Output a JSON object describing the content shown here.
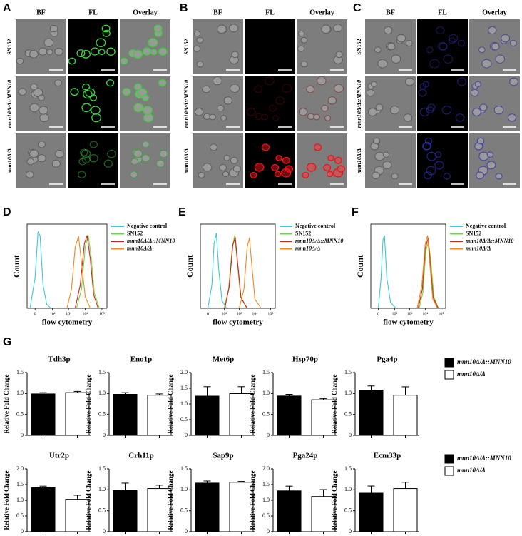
{
  "microscopy": [
    {
      "label": "A",
      "columns": [
        "BF",
        "FL",
        "Overlay"
      ],
      "rows": [
        "SN152",
        "mnn10Δ/Δ::MNN10",
        "mnn10Δ/Δ"
      ],
      "color": "#3fd23f"
    },
    {
      "label": "B",
      "columns": [
        "BF",
        "FL",
        "Overlay"
      ],
      "rows": [
        "SN152",
        "mnn10Δ/Δ::MNN10",
        "mnn10Δ/Δ"
      ],
      "color": "#e8161b"
    },
    {
      "label": "C",
      "columns": [
        "BF",
        "FL",
        "Overlay"
      ],
      "rows": [
        "SN152",
        "mnn10Δ/Δ::MNN10",
        "mnn10Δ/Δ"
      ],
      "color": "#3b3bd6"
    }
  ],
  "section_label": "G",
  "chart_data": [
    {
      "type": "flow",
      "label": "D",
      "xlabel": "flow cytometry",
      "ylabel": "Count",
      "xscale": "symlog",
      "xlim": [
        -20,
        200000
      ],
      "ylim": [
        0,
        110
      ],
      "xticks": [
        0,
        {
          "value": 100,
          "label": "10²"
        },
        {
          "value": 1000,
          "label": "10³"
        },
        {
          "value": 10000,
          "label": "10⁴"
        },
        {
          "value": 100000,
          "label": "10⁵"
        }
      ],
      "series": [
        {
          "name": "Negative control",
          "color": "#3cc8d8",
          "x": [
            -10,
            0,
            5,
            10,
            20,
            40,
            80
          ],
          "values": [
            0,
            40,
            100,
            95,
            30,
            5,
            0
          ]
        },
        {
          "name": "SN152",
          "color": "#66dd44",
          "x": [
            3000,
            6000,
            10000,
            15000,
            22000,
            35000,
            70000
          ],
          "values": [
            0,
            25,
            80,
            96,
            70,
            20,
            0
          ]
        },
        {
          "name": "mnn10Δ/Δ::MNN10",
          "color": "#d62020",
          "x": [
            2500,
            5000,
            9000,
            13000,
            20000,
            32000,
            60000
          ],
          "values": [
            0,
            30,
            85,
            95,
            65,
            18,
            0
          ]
        },
        {
          "name": "mnn10Δ/Δ",
          "color": "#f08a1e",
          "x": [
            800,
            1500,
            2500,
            4000,
            6000,
            10000,
            20000
          ],
          "values": [
            0,
            25,
            80,
            94,
            60,
            15,
            0
          ]
        }
      ]
    },
    {
      "type": "flow",
      "label": "E",
      "xlabel": "flow cytometry",
      "ylabel": "Count",
      "xscale": "symlog",
      "xlim": [
        -20,
        200000
      ],
      "ylim": [
        0,
        110
      ],
      "xticks": [
        0,
        {
          "value": 100,
          "label": "10²"
        },
        {
          "value": 1000,
          "label": "10³"
        },
        {
          "value": 10000,
          "label": "10⁴"
        },
        {
          "value": 100000,
          "label": "10⁵"
        }
      ],
      "series": [
        {
          "name": "Negative control",
          "color": "#3cc8d8",
          "x": [
            0,
            8,
            15,
            25,
            40,
            70,
            150
          ],
          "values": [
            0,
            30,
            85,
            98,
            50,
            10,
            0
          ]
        },
        {
          "name": "SN152",
          "color": "#66dd44",
          "x": [
            100,
            200,
            350,
            500,
            750,
            1200,
            3000
          ],
          "values": [
            0,
            25,
            80,
            95,
            60,
            15,
            0
          ]
        },
        {
          "name": "mnn10Δ/Δ::MNN10",
          "color": "#d62020",
          "x": [
            110,
            220,
            380,
            550,
            800,
            1300,
            3200
          ],
          "values": [
            0,
            28,
            82,
            93,
            58,
            14,
            0
          ]
        },
        {
          "name": "mnn10Δ/Δ",
          "color": "#f08a1e",
          "x": [
            1000,
            2000,
            3200,
            4500,
            6500,
            10000,
            25000
          ],
          "values": [
            0,
            25,
            80,
            92,
            55,
            12,
            0
          ]
        }
      ]
    },
    {
      "type": "flow",
      "label": "F",
      "xlabel": "flow cytometry",
      "ylabel": "Count",
      "xscale": "symlog",
      "xlim": [
        -20,
        200000
      ],
      "ylim": [
        0,
        110
      ],
      "xticks": [
        0,
        {
          "value": 100,
          "label": "10²"
        },
        {
          "value": 1000,
          "label": "10³"
        },
        {
          "value": 10000,
          "label": "10⁴"
        },
        {
          "value": 100000,
          "label": "10⁵"
        }
      ],
      "series": [
        {
          "name": "Negative control",
          "color": "#3cc8d8",
          "x": [
            0,
            5,
            10,
            15,
            25,
            50,
            120
          ],
          "values": [
            0,
            40,
            90,
            95,
            40,
            8,
            0
          ]
        },
        {
          "name": "SN152",
          "color": "#66dd44",
          "x": [
            4000,
            7000,
            11000,
            16000,
            23000,
            35000,
            70000
          ],
          "values": [
            0,
            20,
            75,
            88,
            60,
            15,
            0
          ]
        },
        {
          "name": "mnn10Δ/Δ::MNN10",
          "color": "#d62020",
          "x": [
            3500,
            6500,
            10000,
            15000,
            21000,
            32000,
            65000
          ],
          "values": [
            0,
            25,
            78,
            92,
            58,
            14,
            0
          ]
        },
        {
          "name": "mnn10Δ/Δ",
          "color": "#f08a1e",
          "x": [
            3000,
            6000,
            10000,
            14000,
            20000,
            30000,
            60000
          ],
          "values": [
            0,
            30,
            85,
            95,
            55,
            12,
            0
          ]
        }
      ]
    },
    {
      "type": "bar",
      "title": "Tdh3p",
      "ylabel": "Relative Fold Change",
      "ylim": [
        0,
        1.5
      ],
      "yticks": [
        0,
        0.5,
        {
          "value": 1,
          "label": "1.0"
        },
        1.5
      ],
      "series": [
        {
          "name": "mnn10Δ/Δ::MNN10",
          "color": "#000000",
          "values": [
            0.99
          ],
          "errors": [
            0.03
          ]
        },
        {
          "name": "mnn10Δ/Δ",
          "color": "#ffffff",
          "values": [
            1.02
          ],
          "errors": [
            0.03
          ]
        }
      ]
    },
    {
      "type": "bar",
      "title": "Eno1p",
      "ylabel": "Relative Fold Change",
      "ylim": [
        0,
        1.5
      ],
      "yticks": [
        0,
        0.5,
        {
          "value": 1,
          "label": "1.0"
        },
        1.5
      ],
      "series": [
        {
          "name": "mnn10Δ/Δ::MNN10",
          "color": "#000000",
          "values": [
            0.98
          ],
          "errors": [
            0.04
          ]
        },
        {
          "name": "mnn10Δ/Δ",
          "color": "#ffffff",
          "values": [
            0.96
          ],
          "errors": [
            0.03
          ]
        }
      ]
    },
    {
      "type": "bar",
      "title": "Met6p",
      "ylabel": "Relative Fold Change",
      "ylim": [
        0,
        2
      ],
      "yticks": [
        0,
        0.5,
        {
          "value": 1,
          "label": "1.0"
        },
        1.5,
        {
          "value": 2,
          "label": "2.0"
        }
      ],
      "series": [
        {
          "name": "mnn10Δ/Δ::MNN10",
          "color": "#000000",
          "values": [
            1.25
          ],
          "errors": [
            0.3
          ]
        },
        {
          "name": "mnn10Δ/Δ",
          "color": "#ffffff",
          "values": [
            1.33
          ],
          "errors": [
            0.22
          ]
        }
      ]
    },
    {
      "type": "bar",
      "title": "Hsp70p",
      "ylabel": "Relative Fold Change",
      "ylim": [
        0,
        1.5
      ],
      "yticks": [
        0,
        0.5,
        {
          "value": 1,
          "label": "1.0"
        },
        1.5
      ],
      "series": [
        {
          "name": "mnn10Δ/Δ::MNN10",
          "color": "#000000",
          "values": [
            0.94
          ],
          "errors": [
            0.04
          ]
        },
        {
          "name": "mnn10Δ/Δ",
          "color": "#ffffff",
          "values": [
            0.85
          ],
          "errors": [
            0.03
          ]
        }
      ]
    },
    {
      "type": "bar",
      "title": "Pga4p",
      "ylabel": "Relative Fold Change",
      "ylim": [
        0,
        1.5
      ],
      "yticks": [
        0,
        0.5,
        {
          "value": 1,
          "label": "1.0"
        },
        1.5
      ],
      "series": [
        {
          "name": "mnn10Δ/Δ::MNN10",
          "color": "#000000",
          "values": [
            1.08
          ],
          "errors": [
            0.1
          ]
        },
        {
          "name": "mnn10Δ/Δ",
          "color": "#ffffff",
          "values": [
            0.96
          ],
          "errors": [
            0.2
          ]
        }
      ]
    },
    {
      "type": "bar",
      "title": "Utr2p",
      "ylabel": "Relative Fold Change",
      "ylim": [
        0,
        2
      ],
      "yticks": [
        0,
        0.5,
        {
          "value": 1,
          "label": "1.0"
        },
        1.5,
        {
          "value": 2,
          "label": "2.0"
        }
      ],
      "series": [
        {
          "name": "mnn10Δ/Δ::MNN10",
          "color": "#000000",
          "values": [
            1.4
          ],
          "errors": [
            0.05
          ]
        },
        {
          "name": "mnn10Δ/Δ",
          "color": "#ffffff",
          "values": [
            1.03
          ],
          "errors": [
            0.13
          ]
        }
      ]
    },
    {
      "type": "bar",
      "title": "Crh11p",
      "ylabel": "Relative Fold Change",
      "ylim": [
        0,
        1.5
      ],
      "yticks": [
        0,
        0.5,
        {
          "value": 1,
          "label": "1.0"
        },
        1.5
      ],
      "series": [
        {
          "name": "mnn10Δ/Δ::MNN10",
          "color": "#000000",
          "values": [
            0.98
          ],
          "errors": [
            0.18
          ]
        },
        {
          "name": "mnn10Δ/Δ",
          "color": "#ffffff",
          "values": [
            1.03
          ],
          "errors": [
            0.08
          ]
        }
      ]
    },
    {
      "type": "bar",
      "title": "Sap9p",
      "ylabel": "Relative Fold Change",
      "ylim": [
        0,
        1.5
      ],
      "yticks": [
        0,
        0.5,
        {
          "value": 1,
          "label": "1.0"
        },
        1.5
      ],
      "series": [
        {
          "name": "mnn10Δ/Δ::MNN10",
          "color": "#000000",
          "values": [
            1.16
          ],
          "errors": [
            0.05
          ]
        },
        {
          "name": "mnn10Δ/Δ",
          "color": "#ffffff",
          "values": [
            1.18
          ],
          "errors": [
            0.02
          ]
        }
      ]
    },
    {
      "type": "bar",
      "title": "Pga24p",
      "ylabel": "Relative Fold Change",
      "ylim": [
        0,
        2
      ],
      "yticks": [
        0,
        0.5,
        {
          "value": 1,
          "label": "1.0"
        },
        1.5,
        {
          "value": 2,
          "label": "2.0"
        }
      ],
      "series": [
        {
          "name": "mnn10Δ/Δ::MNN10",
          "color": "#000000",
          "values": [
            1.3
          ],
          "errors": [
            0.15
          ]
        },
        {
          "name": "mnn10Δ/Δ",
          "color": "#ffffff",
          "values": [
            1.12
          ],
          "errors": [
            0.22
          ]
        }
      ]
    },
    {
      "type": "bar",
      "title": "Ecm33p",
      "ylabel": "Relative Fold Change",
      "ylim": [
        0,
        1.5
      ],
      "yticks": [
        0,
        0.5,
        {
          "value": 1,
          "label": "1.0"
        },
        1.5
      ],
      "series": [
        {
          "name": "mnn10Δ/Δ::MNN10",
          "color": "#000000",
          "values": [
            0.92
          ],
          "errors": [
            0.17
          ]
        },
        {
          "name": "mnn10Δ/Δ",
          "color": "#ffffff",
          "values": [
            1.03
          ],
          "errors": [
            0.15
          ]
        }
      ]
    }
  ]
}
